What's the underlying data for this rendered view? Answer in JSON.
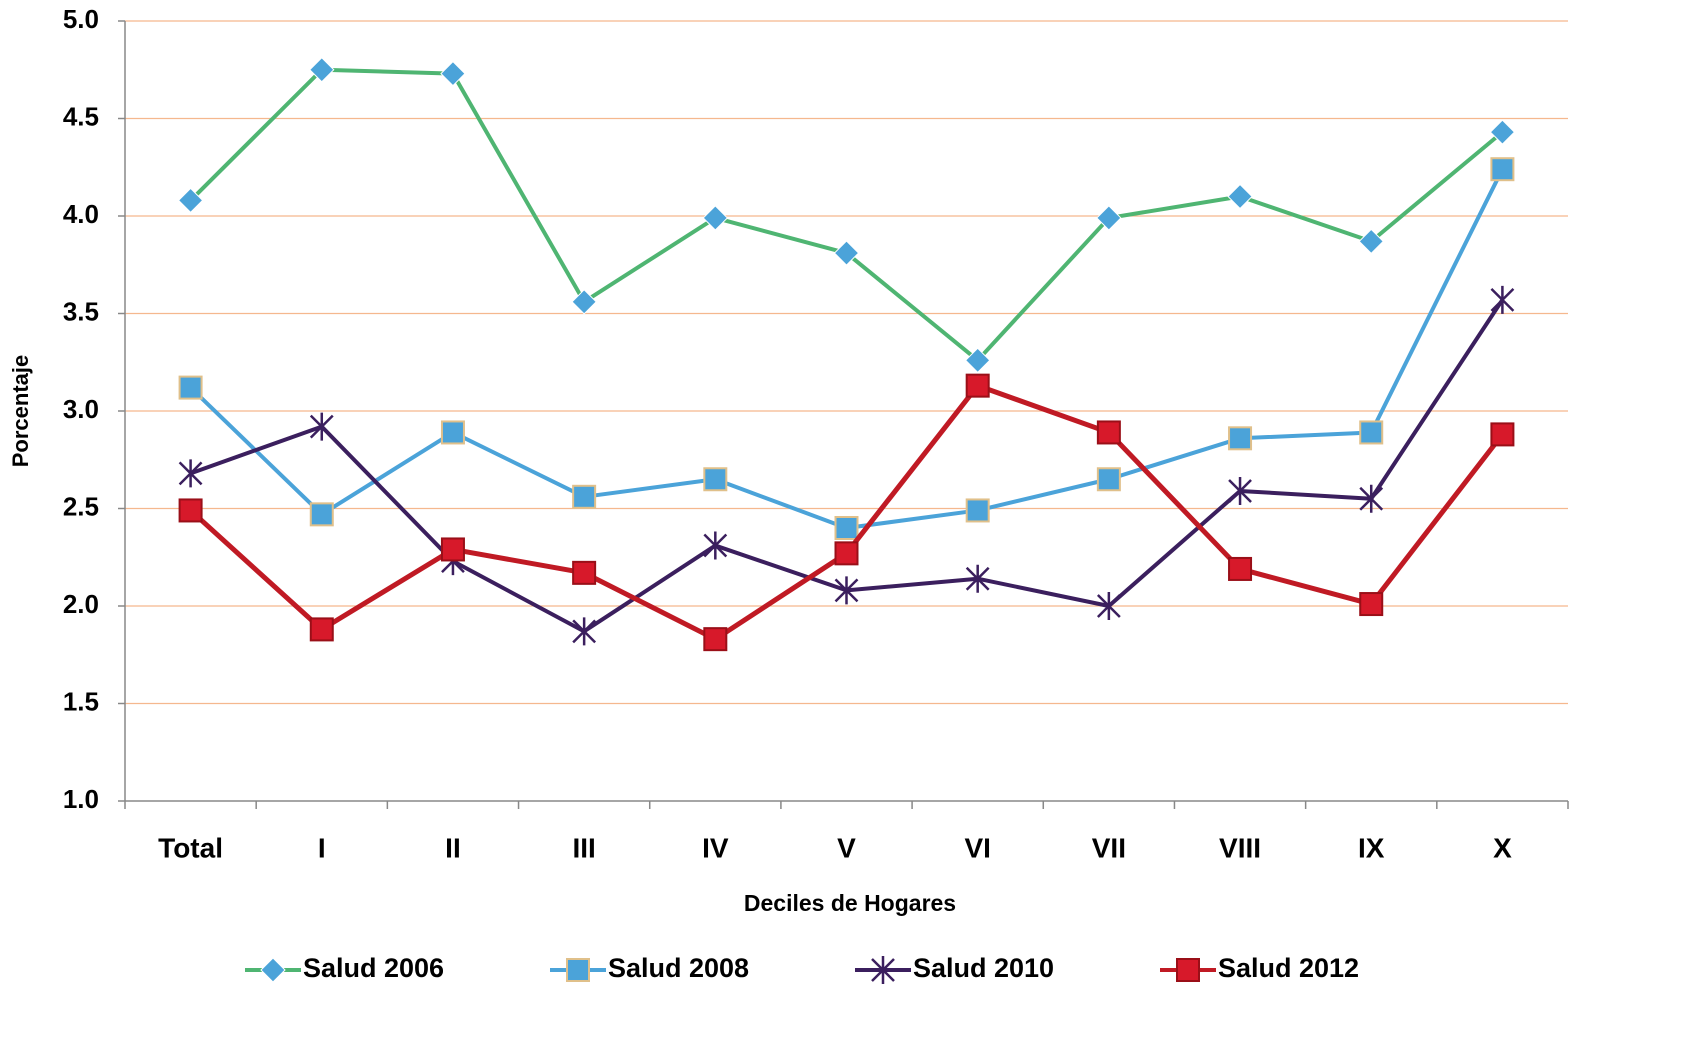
{
  "chart_data": {
    "type": "line",
    "x_label": "Deciles de Hogares",
    "y_label": "Porcentaje",
    "categories": [
      "Total",
      "I",
      "II",
      "III",
      "IV",
      "V",
      "VI",
      "VII",
      "VIII",
      "IX",
      "X"
    ],
    "ylim": [
      1.0,
      5.0
    ],
    "yticks": [
      {
        "value": 1.0,
        "label": "1.0"
      },
      {
        "value": 1.5,
        "label": "1.5"
      },
      {
        "value": 2.0,
        "label": "2.0"
      },
      {
        "value": 2.5,
        "label": "2.5"
      },
      {
        "value": 3.0,
        "label": "3.0"
      },
      {
        "value": 3.5,
        "label": "3.5"
      },
      {
        "value": 4.0,
        "label": "4.0"
      },
      {
        "value": 4.5,
        "label": "4.5"
      },
      {
        "value": 5.0,
        "label": "5.0"
      }
    ],
    "grid": true,
    "legend": "bottom",
    "series": [
      {
        "name": "Salud 2006",
        "color": "#4fb572",
        "marker": "diamond",
        "marker_color": "#4ba3d9",
        "values": [
          4.08,
          4.75,
          4.73,
          3.56,
          3.99,
          3.81,
          3.26,
          3.99,
          4.1,
          3.87,
          4.43
        ]
      },
      {
        "name": "Salud 2008",
        "color": "#4ba3d9",
        "marker": "square",
        "marker_color": "#4ba3d9",
        "values": [
          3.12,
          2.47,
          2.89,
          2.56,
          2.65,
          2.4,
          2.49,
          2.65,
          2.86,
          2.89,
          4.24
        ]
      },
      {
        "name": "Salud 2010",
        "color": "#3b1f5e",
        "marker": "star",
        "marker_color": "#3b1f5e",
        "values": [
          2.68,
          2.92,
          2.23,
          1.87,
          2.31,
          2.08,
          2.14,
          2.0,
          2.59,
          2.55,
          3.57
        ]
      },
      {
        "name": "Salud 2012",
        "color": "#c01a24",
        "marker": "square",
        "marker_color": "#d7192a",
        "values": [
          2.49,
          1.88,
          2.29,
          2.17,
          1.83,
          2.27,
          3.13,
          2.89,
          2.19,
          2.01,
          2.88
        ]
      }
    ]
  }
}
